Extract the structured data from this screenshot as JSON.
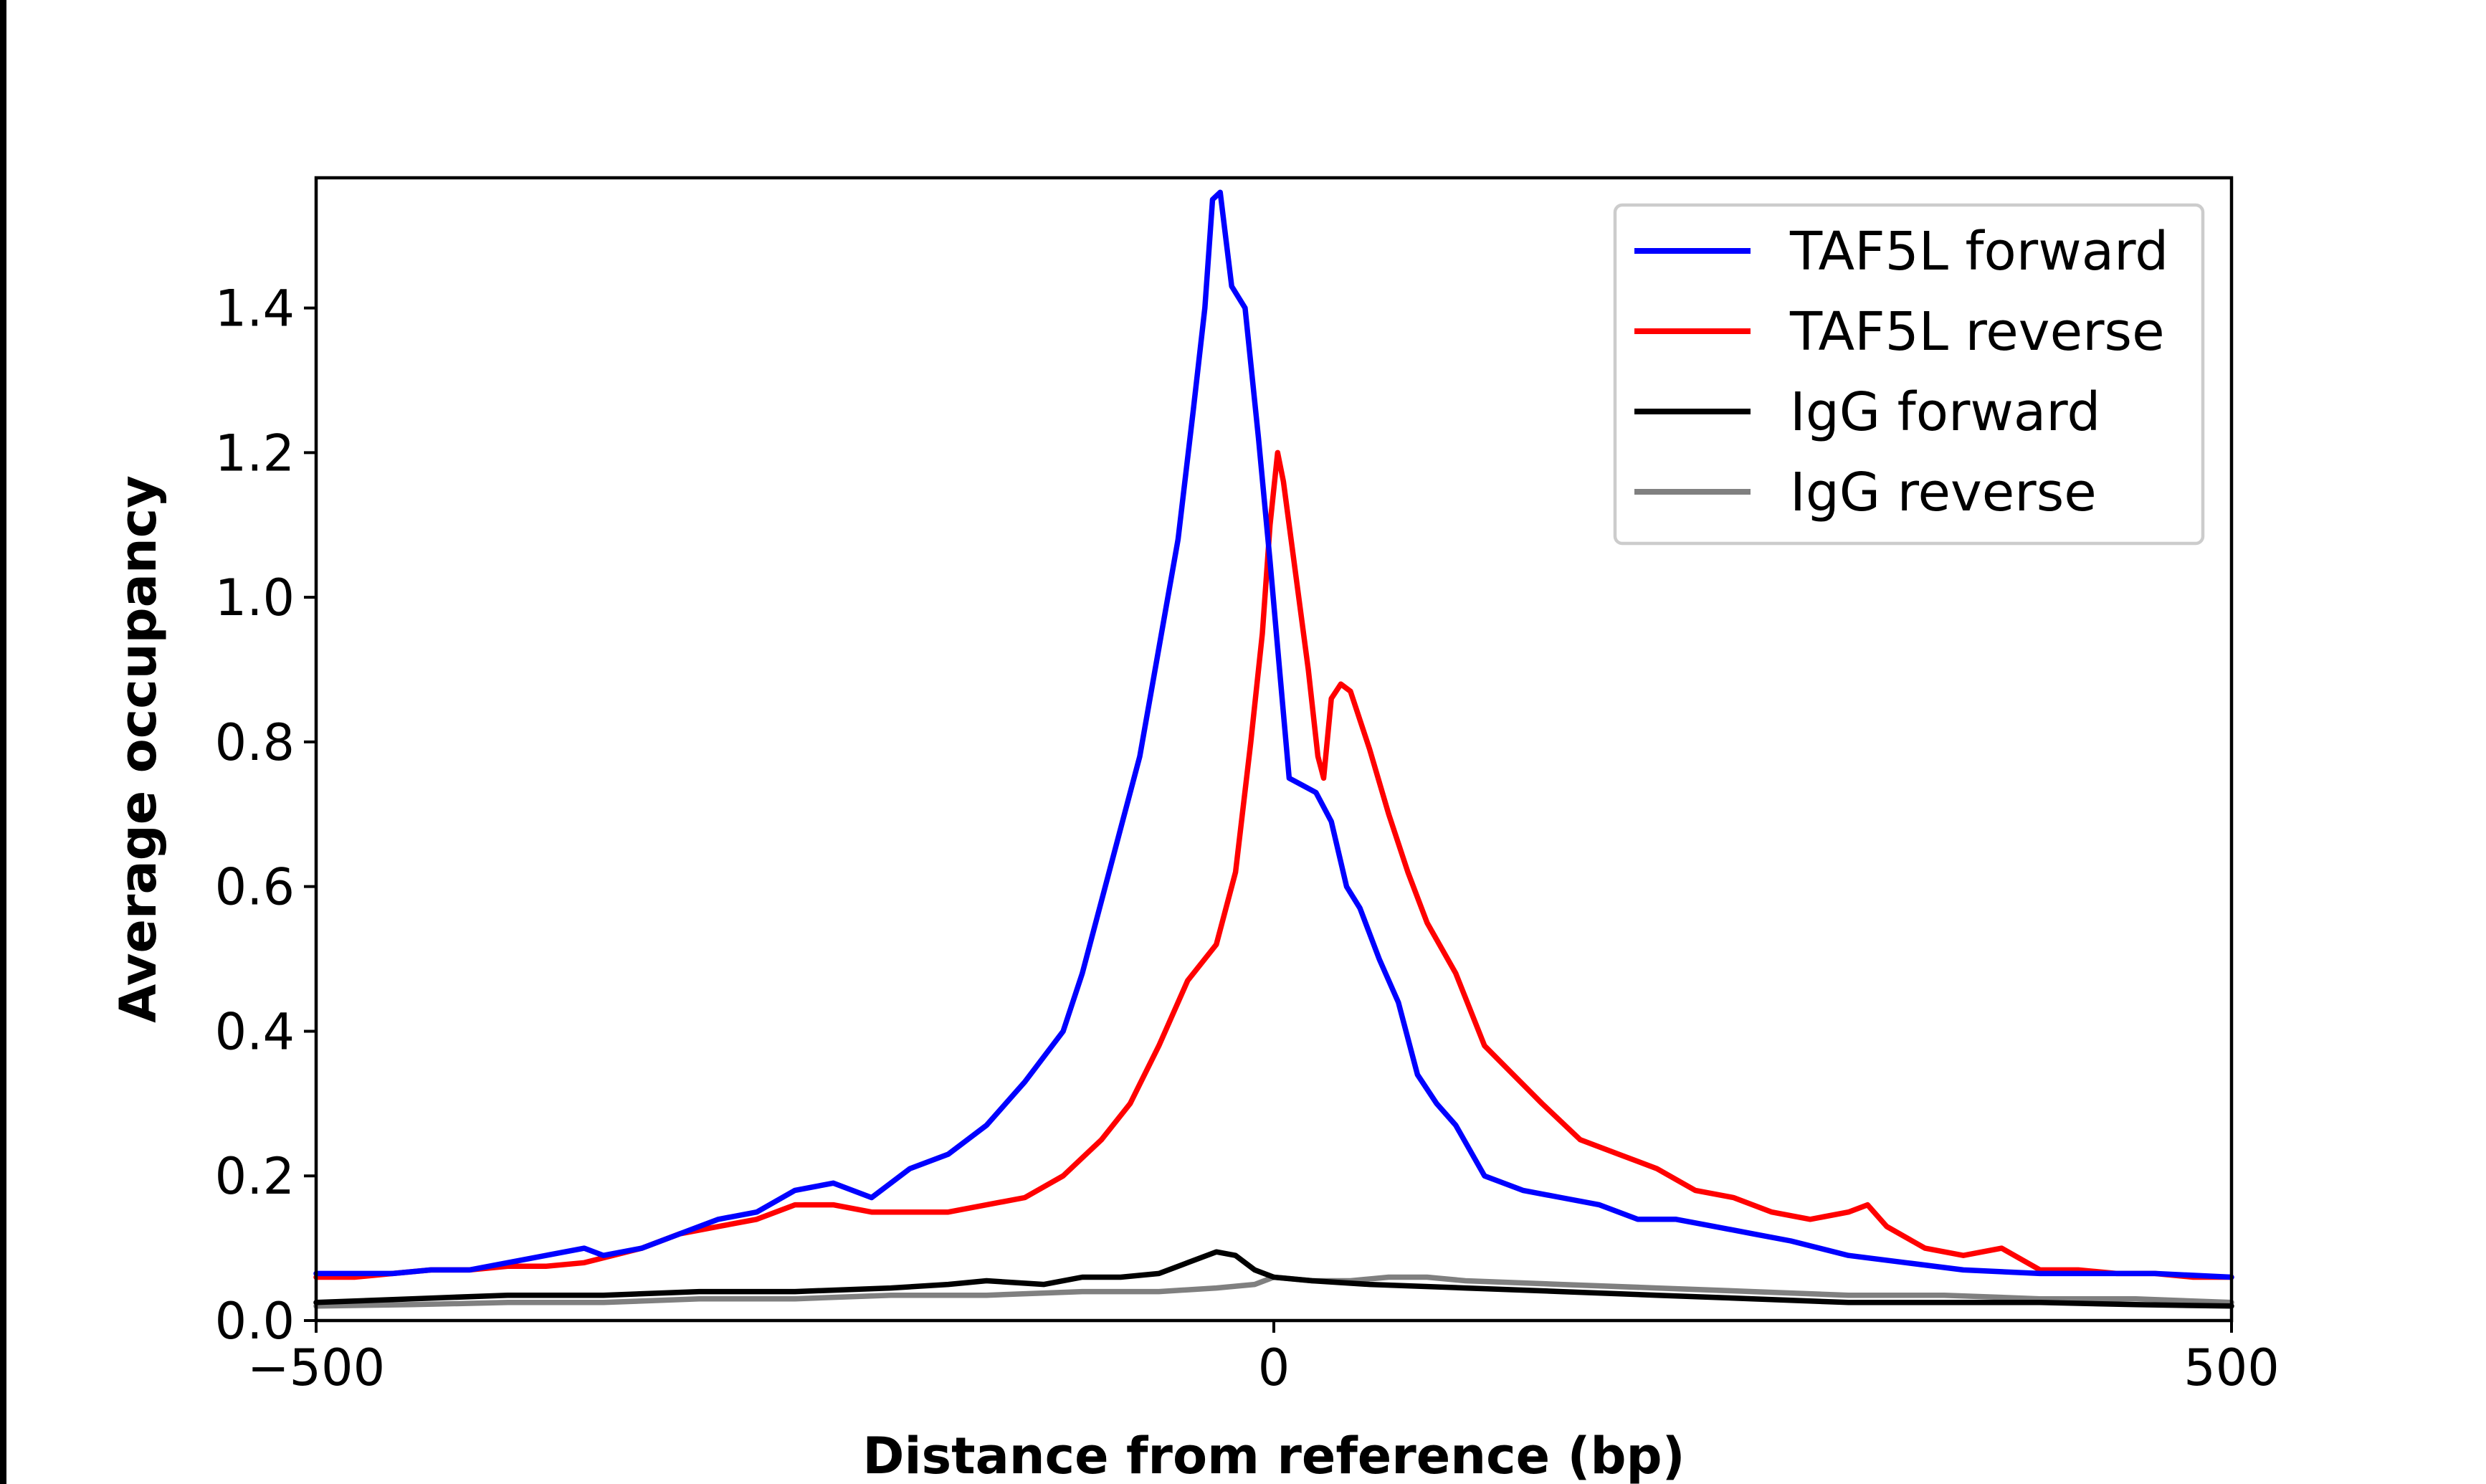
{
  "chart_data": {
    "type": "line",
    "title": "",
    "xlabel": "Distance from reference (bp)",
    "ylabel": "Average occupancy",
    "xlim": [
      -500,
      500
    ],
    "ylim": [
      0,
      1.58
    ],
    "x_ticks": [
      -500,
      0,
      500
    ],
    "x_tick_labels": [
      "−500",
      "0",
      "500"
    ],
    "y_ticks": [
      0.0,
      0.2,
      0.4,
      0.6,
      0.8,
      1.0,
      1.2,
      1.4
    ],
    "y_tick_labels": [
      "0.0",
      "0.2",
      "0.4",
      "0.6",
      "0.8",
      "1.0",
      "1.2",
      "1.4"
    ],
    "grid": false,
    "legend_position": "top-right",
    "series": [
      {
        "name": "TAF5L forward",
        "color": "#0000ff",
        "points": [
          [
            -500,
            0.065
          ],
          [
            -480,
            0.065
          ],
          [
            -460,
            0.065
          ],
          [
            -440,
            0.07
          ],
          [
            -420,
            0.07
          ],
          [
            -400,
            0.08
          ],
          [
            -380,
            0.09
          ],
          [
            -360,
            0.1
          ],
          [
            -350,
            0.09
          ],
          [
            -330,
            0.1
          ],
          [
            -310,
            0.12
          ],
          [
            -290,
            0.14
          ],
          [
            -270,
            0.15
          ],
          [
            -250,
            0.18
          ],
          [
            -230,
            0.19
          ],
          [
            -210,
            0.17
          ],
          [
            -190,
            0.21
          ],
          [
            -170,
            0.23
          ],
          [
            -150,
            0.27
          ],
          [
            -130,
            0.33
          ],
          [
            -110,
            0.4
          ],
          [
            -100,
            0.48
          ],
          [
            -90,
            0.58
          ],
          [
            -80,
            0.68
          ],
          [
            -70,
            0.78
          ],
          [
            -60,
            0.93
          ],
          [
            -50,
            1.08
          ],
          [
            -42,
            1.26
          ],
          [
            -36,
            1.4
          ],
          [
            -32,
            1.55
          ],
          [
            -28,
            1.56
          ],
          [
            -22,
            1.43
          ],
          [
            -15,
            1.4
          ],
          [
            -8,
            1.22
          ],
          [
            -2,
            1.05
          ],
          [
            3,
            0.9
          ],
          [
            8,
            0.75
          ],
          [
            15,
            0.74
          ],
          [
            22,
            0.73
          ],
          [
            30,
            0.69
          ],
          [
            38,
            0.6
          ],
          [
            45,
            0.57
          ],
          [
            55,
            0.5
          ],
          [
            65,
            0.44
          ],
          [
            75,
            0.34
          ],
          [
            85,
            0.3
          ],
          [
            95,
            0.27
          ],
          [
            110,
            0.2
          ],
          [
            130,
            0.18
          ],
          [
            150,
            0.17
          ],
          [
            170,
            0.16
          ],
          [
            190,
            0.14
          ],
          [
            210,
            0.14
          ],
          [
            230,
            0.13
          ],
          [
            250,
            0.12
          ],
          [
            270,
            0.11
          ],
          [
            300,
            0.09
          ],
          [
            330,
            0.08
          ],
          [
            360,
            0.07
          ],
          [
            400,
            0.065
          ],
          [
            430,
            0.065
          ],
          [
            460,
            0.065
          ],
          [
            500,
            0.06
          ]
        ]
      },
      {
        "name": "TAF5L reverse",
        "color": "#ff0000",
        "points": [
          [
            -500,
            0.06
          ],
          [
            -480,
            0.06
          ],
          [
            -460,
            0.065
          ],
          [
            -440,
            0.07
          ],
          [
            -420,
            0.07
          ],
          [
            -400,
            0.075
          ],
          [
            -380,
            0.075
          ],
          [
            -360,
            0.08
          ],
          [
            -330,
            0.1
          ],
          [
            -310,
            0.12
          ],
          [
            -290,
            0.13
          ],
          [
            -270,
            0.14
          ],
          [
            -250,
            0.16
          ],
          [
            -230,
            0.16
          ],
          [
            -210,
            0.15
          ],
          [
            -190,
            0.15
          ],
          [
            -170,
            0.15
          ],
          [
            -150,
            0.16
          ],
          [
            -130,
            0.17
          ],
          [
            -110,
            0.2
          ],
          [
            -90,
            0.25
          ],
          [
            -75,
            0.3
          ],
          [
            -60,
            0.38
          ],
          [
            -45,
            0.47
          ],
          [
            -30,
            0.52
          ],
          [
            -20,
            0.62
          ],
          [
            -12,
            0.8
          ],
          [
            -6,
            0.95
          ],
          [
            -2,
            1.1
          ],
          [
            2,
            1.2
          ],
          [
            5,
            1.16
          ],
          [
            12,
            1.02
          ],
          [
            18,
            0.9
          ],
          [
            23,
            0.78
          ],
          [
            26,
            0.75
          ],
          [
            30,
            0.86
          ],
          [
            35,
            0.88
          ],
          [
            40,
            0.87
          ],
          [
            50,
            0.79
          ],
          [
            60,
            0.7
          ],
          [
            70,
            0.62
          ],
          [
            80,
            0.55
          ],
          [
            95,
            0.48
          ],
          [
            110,
            0.38
          ],
          [
            125,
            0.34
          ],
          [
            140,
            0.3
          ],
          [
            160,
            0.25
          ],
          [
            180,
            0.23
          ],
          [
            200,
            0.21
          ],
          [
            220,
            0.18
          ],
          [
            240,
            0.17
          ],
          [
            260,
            0.15
          ],
          [
            280,
            0.14
          ],
          [
            300,
            0.15
          ],
          [
            310,
            0.16
          ],
          [
            320,
            0.13
          ],
          [
            340,
            0.1
          ],
          [
            360,
            0.09
          ],
          [
            380,
            0.1
          ],
          [
            400,
            0.07
          ],
          [
            420,
            0.07
          ],
          [
            440,
            0.065
          ],
          [
            460,
            0.065
          ],
          [
            480,
            0.06
          ],
          [
            500,
            0.06
          ]
        ]
      },
      {
        "name": "IgG forward",
        "color": "#000000",
        "points": [
          [
            -500,
            0.025
          ],
          [
            -450,
            0.03
          ],
          [
            -400,
            0.035
          ],
          [
            -350,
            0.035
          ],
          [
            -300,
            0.04
          ],
          [
            -250,
            0.04
          ],
          [
            -200,
            0.045
          ],
          [
            -170,
            0.05
          ],
          [
            -150,
            0.055
          ],
          [
            -120,
            0.05
          ],
          [
            -100,
            0.06
          ],
          [
            -80,
            0.06
          ],
          [
            -60,
            0.065
          ],
          [
            -45,
            0.08
          ],
          [
            -30,
            0.095
          ],
          [
            -20,
            0.09
          ],
          [
            -10,
            0.07
          ],
          [
            0,
            0.06
          ],
          [
            20,
            0.055
          ],
          [
            50,
            0.05
          ],
          [
            100,
            0.045
          ],
          [
            150,
            0.04
          ],
          [
            200,
            0.035
          ],
          [
            250,
            0.03
          ],
          [
            300,
            0.025
          ],
          [
            350,
            0.025
          ],
          [
            400,
            0.025
          ],
          [
            450,
            0.022
          ],
          [
            500,
            0.02
          ]
        ]
      },
      {
        "name": "IgG reverse",
        "color": "#808080",
        "points": [
          [
            -500,
            0.02
          ],
          [
            -450,
            0.022
          ],
          [
            -400,
            0.025
          ],
          [
            -350,
            0.025
          ],
          [
            -300,
            0.03
          ],
          [
            -250,
            0.03
          ],
          [
            -200,
            0.035
          ],
          [
            -150,
            0.035
          ],
          [
            -100,
            0.04
          ],
          [
            -60,
            0.04
          ],
          [
            -30,
            0.045
          ],
          [
            -10,
            0.05
          ],
          [
            0,
            0.06
          ],
          [
            20,
            0.055
          ],
          [
            40,
            0.055
          ],
          [
            60,
            0.06
          ],
          [
            80,
            0.06
          ],
          [
            100,
            0.055
          ],
          [
            150,
            0.05
          ],
          [
            200,
            0.045
          ],
          [
            250,
            0.04
          ],
          [
            300,
            0.035
          ],
          [
            350,
            0.035
          ],
          [
            400,
            0.03
          ],
          [
            450,
            0.03
          ],
          [
            500,
            0.025
          ]
        ]
      }
    ]
  }
}
